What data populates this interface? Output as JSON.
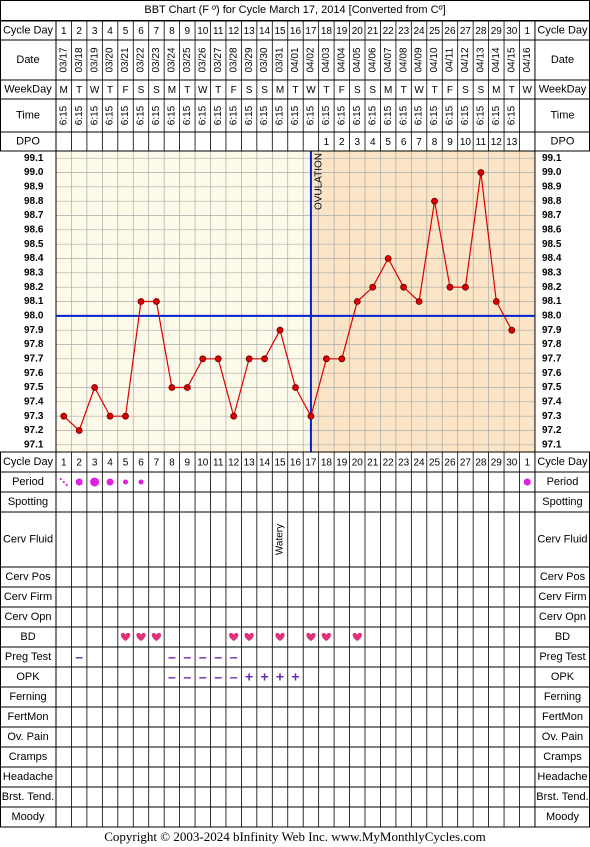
{
  "title": "BBT Chart (F º) for Cycle March 17, 2014  [Converted from Cº]",
  "labels": {
    "cycle_day": "Cycle Day",
    "date": "Date",
    "weekday": "WeekDay",
    "time": "Time",
    "dpo": "DPO",
    "period": "Period",
    "spotting": "Spotting",
    "cerv_fluid": "Cerv Fluid",
    "cerv_pos": "Cerv Pos",
    "cerv_firm": "Cerv Firm",
    "cerv_opn": "Cerv Opn",
    "bd": "BD",
    "preg_test": "Preg Test",
    "opk": "OPK",
    "ferning": "Ferning",
    "fertmon": "FertMon",
    "ov_pain": "Ov. Pain",
    "cramps": "Cramps",
    "headache": "Headache",
    "brst_tend": "Brst. Tend.",
    "moody": "Moody"
  },
  "cycle_days": [
    1,
    2,
    3,
    4,
    5,
    6,
    7,
    8,
    9,
    10,
    11,
    12,
    13,
    14,
    15,
    16,
    17,
    18,
    19,
    20,
    21,
    22,
    23,
    24,
    25,
    26,
    27,
    28,
    29,
    30,
    1
  ],
  "dates": [
    "03/17",
    "03/18",
    "03/19",
    "03/20",
    "03/21",
    "03/22",
    "03/23",
    "03/24",
    "03/25",
    "03/26",
    "03/27",
    "03/28",
    "03/29",
    "03/30",
    "03/31",
    "04/01",
    "04/02",
    "04/03",
    "04/04",
    "04/05",
    "04/06",
    "04/07",
    "04/08",
    "04/09",
    "04/10",
    "04/11",
    "04/12",
    "04/13",
    "04/14",
    "04/15",
    "04/16"
  ],
  "weekdays": [
    "M",
    "T",
    "W",
    "T",
    "F",
    "S",
    "S",
    "M",
    "T",
    "W",
    "T",
    "F",
    "S",
    "S",
    "M",
    "T",
    "W",
    "T",
    "F",
    "S",
    "S",
    "M",
    "T",
    "W",
    "T",
    "F",
    "S",
    "S",
    "M",
    "T",
    "W"
  ],
  "times": [
    "6:15",
    "6:15",
    "6:15",
    "6:15",
    "6:15",
    "6:15",
    "6:15",
    "6:15",
    "6:15",
    "6:15",
    "6:15",
    "6:15",
    "6:15",
    "6:15",
    "6:15",
    "6:15",
    "6:15",
    "6:15",
    "6:15",
    "6:15",
    "6:15",
    "6:15",
    "6:15",
    "6:15",
    "6:15",
    "6:15",
    "6:15",
    "6:15",
    "6:15",
    "6:15",
    null
  ],
  "dpo": [
    null,
    null,
    null,
    null,
    null,
    null,
    null,
    null,
    null,
    null,
    null,
    null,
    null,
    null,
    null,
    null,
    null,
    1,
    2,
    3,
    4,
    5,
    6,
    7,
    8,
    9,
    10,
    11,
    12,
    13,
    null
  ],
  "chart_data": {
    "type": "line",
    "color": "#dd0000",
    "values": [
      97.3,
      97.2,
      97.5,
      97.3,
      97.3,
      98.1,
      98.1,
      97.5,
      97.5,
      97.7,
      97.7,
      97.3,
      97.7,
      97.7,
      97.9,
      97.5,
      97.3,
      97.7,
      97.7,
      98.1,
      98.2,
      98.4,
      98.2,
      98.1,
      98.8,
      98.2,
      98.2,
      99.0,
      98.1,
      97.9,
      null
    ],
    "ylim": [
      97.05,
      99.15
    ],
    "yticks": [
      99.1,
      {
        "value": 99,
        "label": "99.0"
      },
      98.9,
      98.8,
      98.7,
      98.6,
      98.5,
      98.4,
      98.3,
      98.2,
      98.1,
      {
        "value": 98,
        "label": "98.0"
      },
      97.9,
      97.8,
      97.7,
      97.6,
      97.5,
      97.4,
      97.3,
      97.2,
      97.1
    ],
    "coverline": 98.0,
    "line_color": "#0022cc",
    "ovulation": {
      "label": "OVULATION",
      "cycle_day": 17
    }
  },
  "period": [
    1,
    3,
    4,
    3,
    2,
    2,
    null,
    null,
    null,
    null,
    null,
    null,
    null,
    null,
    null,
    null,
    null,
    null,
    null,
    null,
    null,
    null,
    null,
    null,
    null,
    null,
    null,
    null,
    null,
    null,
    3
  ],
  "cerv_fluid": [
    null,
    null,
    null,
    null,
    null,
    null,
    null,
    null,
    null,
    null,
    null,
    null,
    null,
    null,
    "Watery",
    null,
    null,
    null,
    null,
    null,
    null,
    null,
    null,
    null,
    null,
    null,
    null,
    null,
    null,
    null,
    null
  ],
  "bd": [
    false,
    false,
    false,
    false,
    true,
    true,
    true,
    false,
    false,
    false,
    false,
    true,
    true,
    false,
    true,
    false,
    true,
    true,
    false,
    true,
    false,
    false,
    false,
    false,
    false,
    false,
    false,
    false,
    false,
    false,
    false
  ],
  "preg_test": [
    null,
    "–",
    null,
    null,
    null,
    null,
    null,
    "–",
    "–",
    "–",
    "–",
    "–",
    null,
    null,
    null,
    null,
    null,
    null,
    null,
    null,
    null,
    null,
    null,
    null,
    null,
    null,
    null,
    null,
    null,
    null,
    null
  ],
  "opk": [
    null,
    null,
    null,
    null,
    null,
    null,
    null,
    "–",
    "–",
    "–",
    "–",
    "–",
    "+",
    "+",
    "+",
    "+",
    null,
    null,
    null,
    null,
    null,
    null,
    null,
    null,
    null,
    null,
    null,
    null,
    null,
    null,
    null
  ],
  "copyright": "Copyright © 2003-2024 bInfinity Web Inc.     www.MyMonthlyCycles.com"
}
